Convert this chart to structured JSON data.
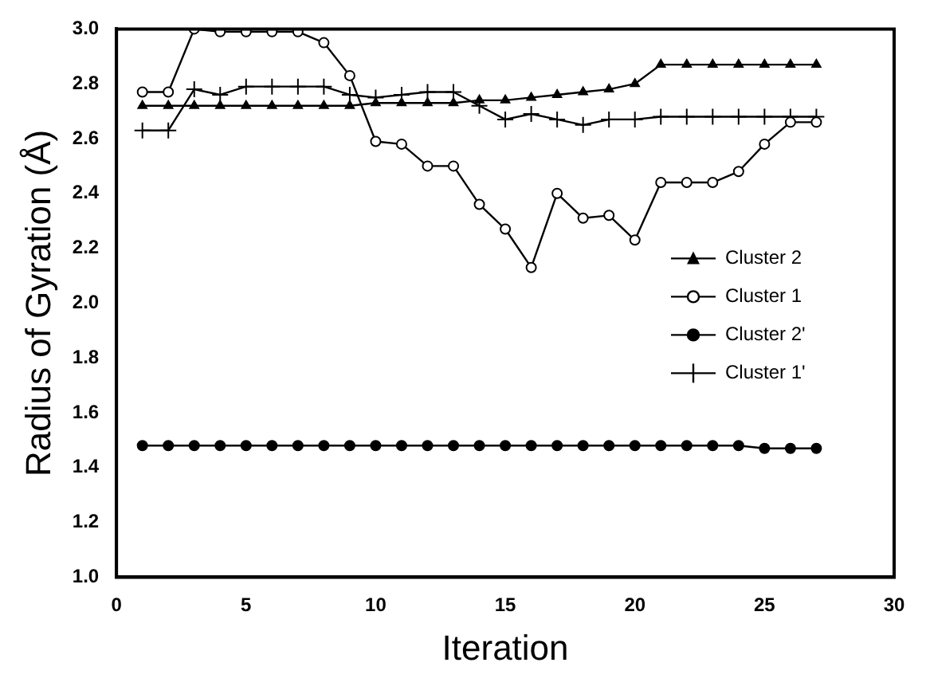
{
  "chart_data": {
    "type": "line",
    "xlabel": "Iteration",
    "ylabel": "Radius of Gyration (Å)",
    "x": [
      1,
      2,
      3,
      4,
      5,
      6,
      7,
      8,
      9,
      10,
      11,
      12,
      13,
      14,
      15,
      16,
      17,
      18,
      19,
      20,
      21,
      22,
      23,
      24,
      25,
      26,
      27
    ],
    "xlim": [
      0,
      30
    ],
    "xticks": [
      0,
      5,
      10,
      15,
      20,
      25,
      30
    ],
    "ylim": [
      1.0,
      3.0
    ],
    "yticks": [
      {
        "value": 1.0,
        "label": "1.0"
      },
      {
        "value": 1.2,
        "label": "1.2"
      },
      {
        "value": 1.4,
        "label": "1.4"
      },
      {
        "value": 1.6,
        "label": "1.6"
      },
      {
        "value": 1.8,
        "label": "1.8"
      },
      {
        "value": 2.0,
        "label": "2.0"
      },
      {
        "value": 2.2,
        "label": "2.2"
      },
      {
        "value": 2.4,
        "label": "2.4"
      },
      {
        "value": 2.6,
        "label": "2.6"
      },
      {
        "value": 2.8,
        "label": "2.8"
      },
      {
        "value": 3.0,
        "label": "3.0"
      }
    ],
    "grid": false,
    "legend": "right",
    "series": [
      {
        "name": "Cluster 2",
        "color": "#000000",
        "marker": "triangle",
        "values": [
          2.72,
          2.72,
          2.72,
          2.72,
          2.72,
          2.72,
          2.72,
          2.72,
          2.72,
          2.73,
          2.73,
          2.73,
          2.73,
          2.74,
          2.74,
          2.75,
          2.76,
          2.77,
          2.78,
          2.8,
          2.87,
          2.87,
          2.87,
          2.87,
          2.87,
          2.87,
          2.87
        ]
      },
      {
        "name": "Cluster 1",
        "color": "#000000",
        "marker": "circle",
        "values": [
          2.77,
          2.77,
          3.0,
          2.99,
          2.99,
          2.99,
          2.99,
          2.95,
          2.83,
          2.59,
          2.58,
          2.5,
          2.5,
          2.36,
          2.27,
          2.13,
          2.4,
          2.31,
          2.32,
          2.23,
          2.44,
          2.44,
          2.44,
          2.48,
          2.58,
          2.66,
          2.66
        ]
      },
      {
        "name": "Cluster 2'",
        "color": "#000000",
        "marker": "circle",
        "values": [
          1.48,
          1.48,
          1.48,
          1.48,
          1.48,
          1.48,
          1.48,
          1.48,
          1.48,
          1.48,
          1.48,
          1.48,
          1.48,
          1.48,
          1.48,
          1.48,
          1.48,
          1.48,
          1.48,
          1.48,
          1.48,
          1.48,
          1.48,
          1.48,
          1.47,
          1.47,
          1.47
        ]
      },
      {
        "name": "Cluster 1'",
        "color": "#000000",
        "marker": "cross",
        "values": [
          2.63,
          2.63,
          2.78,
          2.76,
          2.79,
          2.79,
          2.79,
          2.79,
          2.76,
          2.75,
          2.76,
          2.77,
          2.77,
          2.72,
          2.67,
          2.69,
          2.67,
          2.65,
          2.67,
          2.67,
          2.68,
          2.68,
          2.68,
          2.68,
          2.68,
          2.68,
          2.68
        ]
      }
    ]
  }
}
